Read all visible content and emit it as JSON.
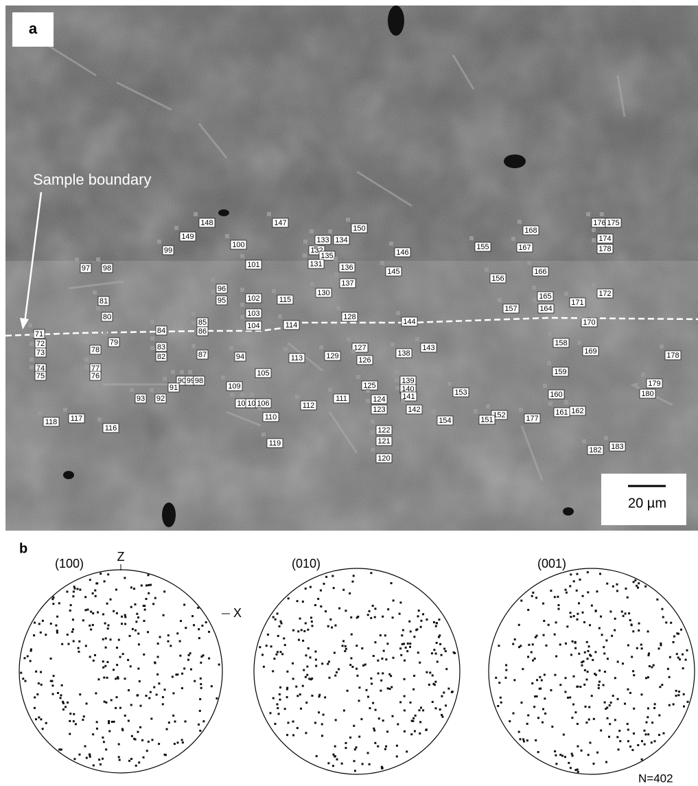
{
  "panel_a": {
    "label": "a",
    "annotation": "Sample boundary",
    "scale_bar": "20 µm",
    "spot_labels": [
      "148",
      "147",
      "150",
      "149",
      "133",
      "134",
      "100",
      "99",
      "132",
      "135",
      "146",
      "155",
      "168",
      "176",
      "175",
      "174",
      "167",
      "178",
      "97",
      "98",
      "101",
      "131",
      "136",
      "145",
      "166",
      "137",
      "96",
      "156",
      "130",
      "102",
      "115",
      "165",
      "172",
      "95",
      "81",
      "157",
      "164",
      "171",
      "80",
      "103",
      "128",
      "85",
      "86",
      "104",
      "114",
      "144",
      "170",
      "84",
      "71",
      "79",
      "72",
      "83",
      "127",
      "143",
      "158",
      "169",
      "73",
      "78",
      "82",
      "87",
      "94",
      "113",
      "129",
      "126",
      "138",
      "178",
      "74",
      "77",
      "75",
      "76",
      "105",
      "159",
      "90",
      "99",
      "98",
      "139",
      "91",
      "109",
      "125",
      "140",
      "179",
      "153",
      "160",
      "141",
      "93",
      "92",
      "111",
      "124",
      "180",
      "108",
      "107",
      "106",
      "112",
      "123",
      "142",
      "162",
      "161",
      "152",
      "177",
      "118",
      "117",
      "154",
      "151",
      "110",
      "116",
      "122",
      "119",
      "121",
      "183",
      "182",
      "120"
    ]
  },
  "panel_b": {
    "label": "b",
    "pole_figures": [
      {
        "title": "(100)"
      },
      {
        "title": "(010)"
      },
      {
        "title": "(001)"
      }
    ],
    "axis_z": "Z",
    "axis_x": "X",
    "count": "N=402"
  }
}
